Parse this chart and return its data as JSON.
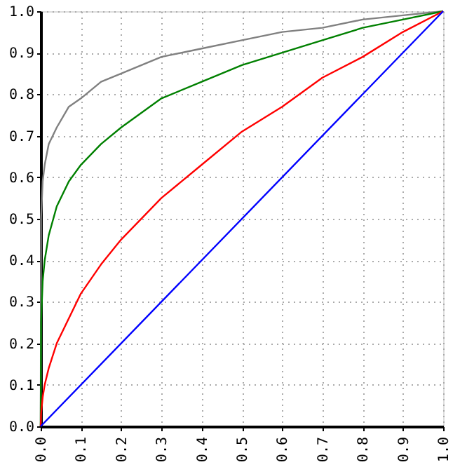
{
  "chart_data": {
    "type": "line",
    "x": [
      0,
      0.001,
      0.005,
      0.01,
      0.02,
      0.04,
      0.07,
      0.1,
      0.15,
      0.2,
      0.3,
      0.4,
      0.5,
      0.6,
      0.7,
      0.8,
      0.9,
      1.0
    ],
    "series": [
      {
        "color": "#808080",
        "values": [
          0,
          0.5,
          0.59,
          0.63,
          0.68,
          0.72,
          0.77,
          0.79,
          0.83,
          0.85,
          0.89,
          0.91,
          0.93,
          0.95,
          0.96,
          0.98,
          0.99,
          1.0
        ]
      },
      {
        "color": "#008000",
        "values": [
          0,
          0.25,
          0.35,
          0.4,
          0.46,
          0.53,
          0.59,
          0.63,
          0.68,
          0.72,
          0.79,
          0.83,
          0.87,
          0.9,
          0.93,
          0.96,
          0.98,
          1.0
        ]
      },
      {
        "color": "#ff0000",
        "values": [
          0,
          0.03,
          0.07,
          0.1,
          0.14,
          0.2,
          0.26,
          0.32,
          0.39,
          0.45,
          0.55,
          0.63,
          0.71,
          0.77,
          0.84,
          0.89,
          0.95,
          1.0
        ]
      },
      {
        "color": "#0000ff",
        "x": [
          0,
          1.0
        ],
        "values": [
          0,
          1.0
        ]
      }
    ],
    "xlim": [
      0,
      1.0
    ],
    "ylim": [
      0,
      1.0
    ],
    "xticks": [
      {
        "value": 0,
        "label": "0.0"
      },
      {
        "value": 0.1,
        "label": "0.1"
      },
      {
        "value": 0.2,
        "label": "0.2"
      },
      {
        "value": 0.3,
        "label": "0.3"
      },
      {
        "value": 0.4,
        "label": "0.4"
      },
      {
        "value": 0.5,
        "label": "0.5"
      },
      {
        "value": 0.6,
        "label": "0.6"
      },
      {
        "value": 0.7,
        "label": "0.7"
      },
      {
        "value": 0.8,
        "label": "0.8"
      },
      {
        "value": 0.9,
        "label": "0.9"
      },
      {
        "value": 1.0,
        "label": "1.0"
      }
    ],
    "yticks": [
      {
        "value": 0,
        "label": "0.0"
      },
      {
        "value": 0.1,
        "label": "0.1"
      },
      {
        "value": 0.2,
        "label": "0.2"
      },
      {
        "value": 0.3,
        "label": "0.3"
      },
      {
        "value": 0.4,
        "label": "0.4"
      },
      {
        "value": 0.5,
        "label": "0.5"
      },
      {
        "value": 0.6,
        "label": "0.6"
      },
      {
        "value": 0.7,
        "label": "0.7"
      },
      {
        "value": 0.8,
        "label": "0.8"
      },
      {
        "value": 0.9,
        "label": "0.9"
      },
      {
        "value": 1.0,
        "label": "1.0"
      }
    ],
    "grid": true,
    "marker": "none",
    "line_style": "solid"
  }
}
